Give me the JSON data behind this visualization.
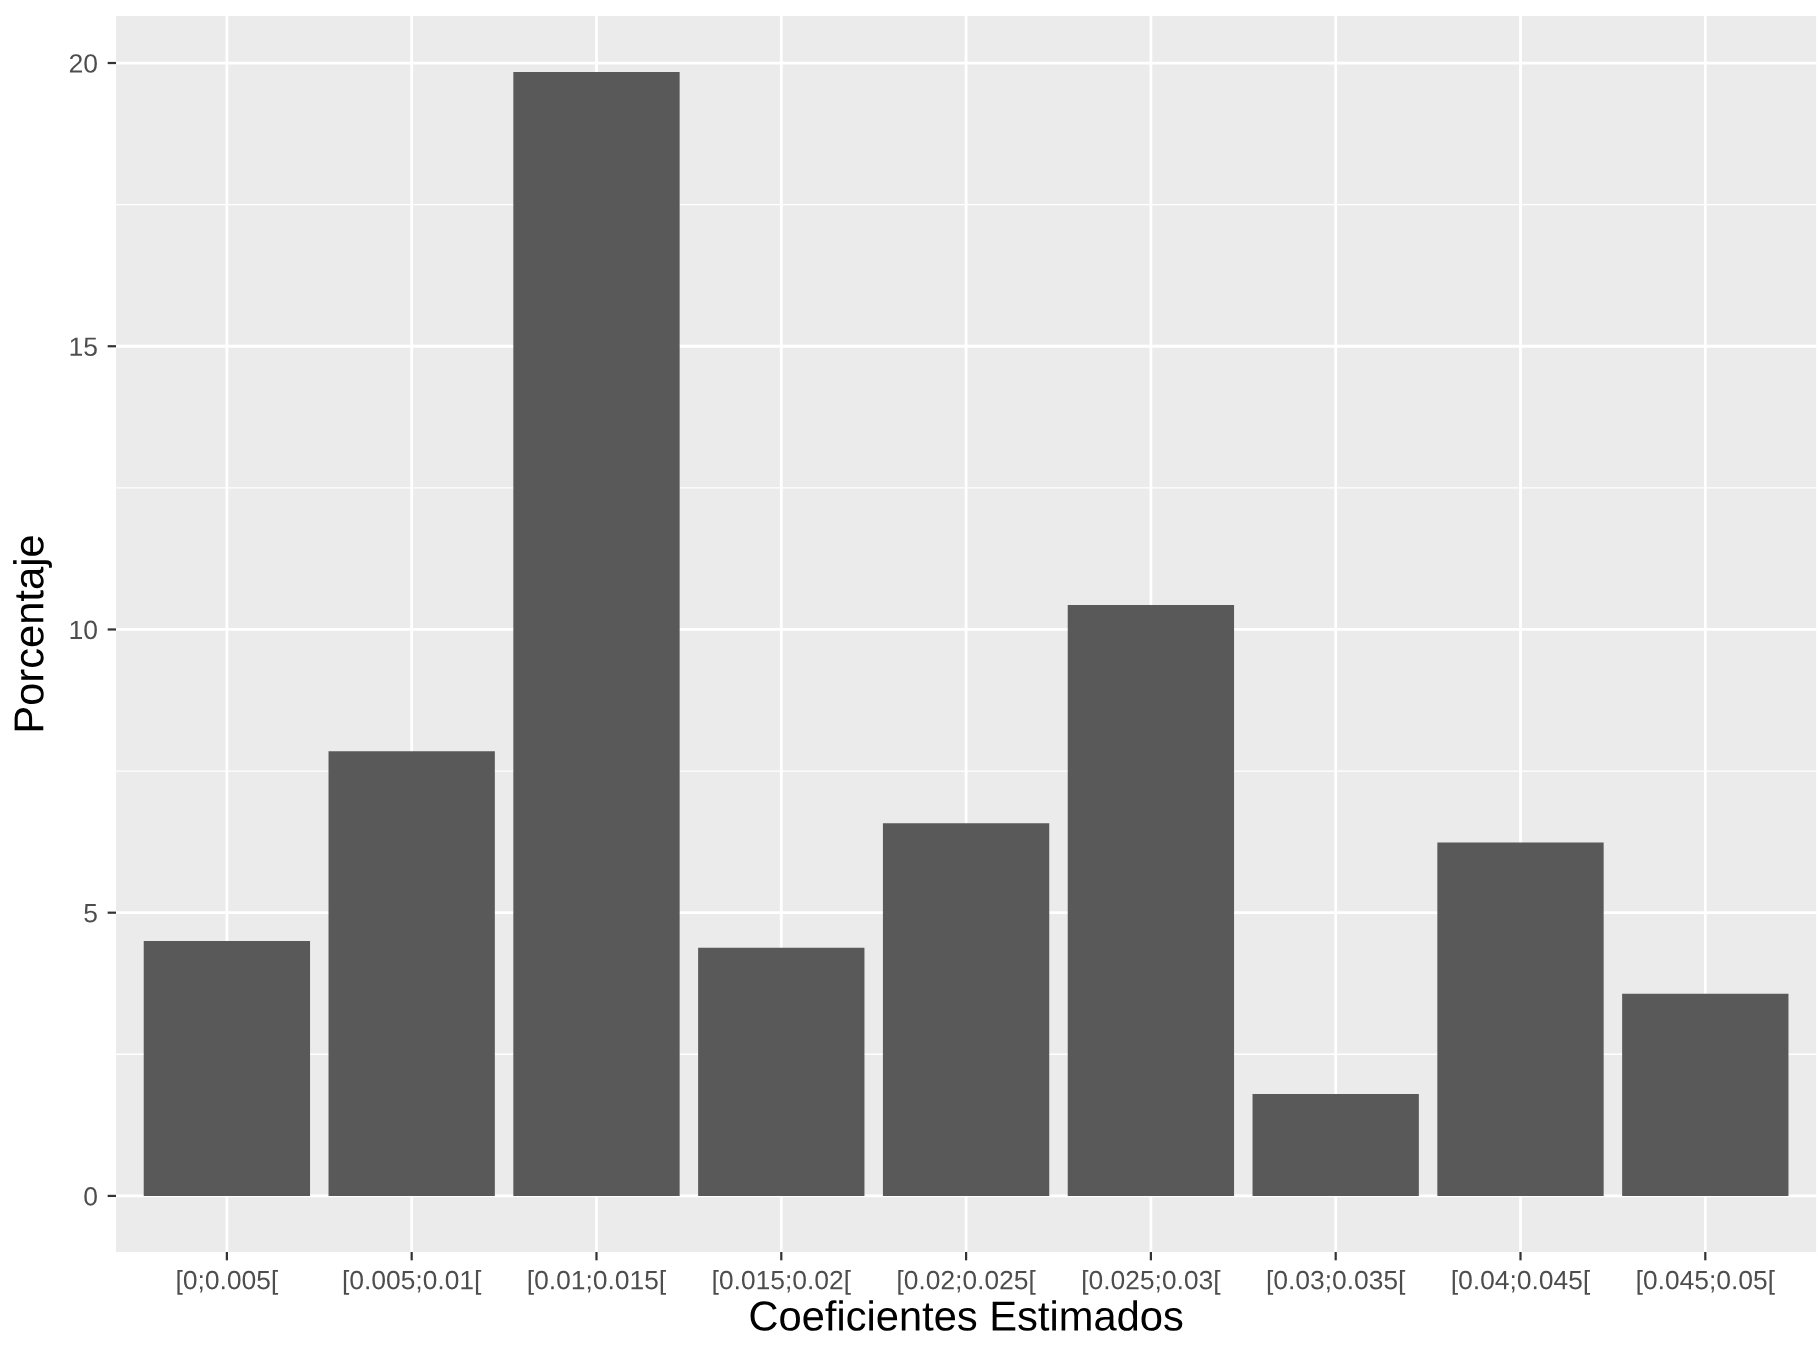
{
  "chart_data": {
    "type": "bar",
    "xlabel": "Coeficientes Estimados",
    "ylabel": "Porcentaje",
    "categories": [
      "[0;0.005[",
      "[0.005;0.01[",
      "[0.01;0.015[",
      "[0.015;0.02[",
      "[0.02;0.025[",
      "[0.025;0.03[",
      "[0.03;0.035[",
      "[0.04;0.045[",
      "[0.045;0.05["
    ],
    "values": [
      4.5,
      7.85,
      19.84,
      4.38,
      6.58,
      10.43,
      1.8,
      6.24,
      3.57
    ],
    "color": "#595959",
    "ylim": [
      -0.99,
      20.83
    ],
    "yticks": [
      0,
      5,
      10,
      15,
      20
    ],
    "grid": true
  }
}
